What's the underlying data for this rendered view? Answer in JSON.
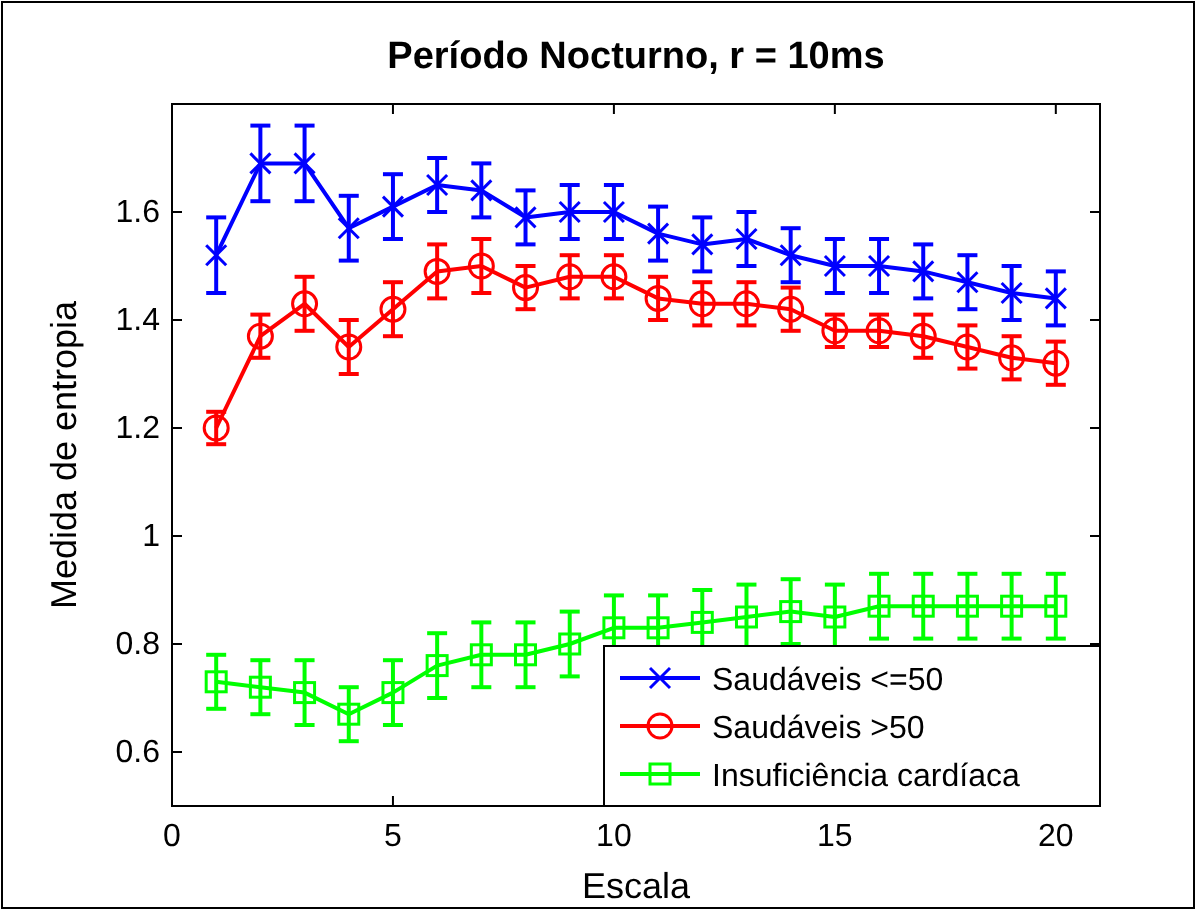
{
  "chart_data": {
    "type": "line",
    "title": "Período Nocturno,  r = 10ms",
    "xlabel": "Escala",
    "ylabel": "Medida de entropia",
    "x": [
      1,
      2,
      3,
      4,
      5,
      6,
      7,
      8,
      9,
      10,
      11,
      12,
      13,
      14,
      15,
      16,
      17,
      18,
      19,
      20
    ],
    "xlim": [
      0,
      21
    ],
    "xticks": [
      0,
      5,
      10,
      15,
      20
    ],
    "ylim": [
      0.5,
      1.8
    ],
    "yticks": [
      0.6,
      0.8,
      1,
      1.2,
      1.4,
      1.6
    ],
    "legend": "bottom right",
    "grid": false,
    "line_style": "solid",
    "series": [
      {
        "name": "Saudáveis <=50",
        "color": "#0000ff",
        "marker": "cross",
        "values": [
          1.52,
          1.69,
          1.69,
          1.57,
          1.61,
          1.65,
          1.64,
          1.59,
          1.6,
          1.6,
          1.56,
          1.54,
          1.55,
          1.52,
          1.5,
          1.5,
          1.49,
          1.47,
          1.45,
          1.44
        ],
        "errors": [
          0.07,
          0.07,
          0.07,
          0.06,
          0.06,
          0.05,
          0.05,
          0.05,
          0.05,
          0.05,
          0.05,
          0.05,
          0.05,
          0.05,
          0.05,
          0.05,
          0.05,
          0.05,
          0.05,
          0.05
        ]
      },
      {
        "name": "Saudáveis >50",
        "color": "#ff0000",
        "marker": "circle",
        "values": [
          1.2,
          1.37,
          1.43,
          1.35,
          1.42,
          1.49,
          1.5,
          1.46,
          1.48,
          1.48,
          1.44,
          1.43,
          1.43,
          1.42,
          1.38,
          1.38,
          1.37,
          1.35,
          1.33,
          1.32
        ],
        "errors": [
          0.03,
          0.04,
          0.05,
          0.05,
          0.05,
          0.05,
          0.05,
          0.04,
          0.04,
          0.04,
          0.04,
          0.04,
          0.04,
          0.04,
          0.03,
          0.03,
          0.04,
          0.04,
          0.04,
          0.04
        ]
      },
      {
        "name": "Insuficiência cardíaca",
        "color": "#00ff00",
        "marker": "square",
        "values": [
          0.73,
          0.72,
          0.71,
          0.67,
          0.71,
          0.76,
          0.78,
          0.78,
          0.8,
          0.83,
          0.83,
          0.84,
          0.85,
          0.86,
          0.85,
          0.87,
          0.87,
          0.87,
          0.87,
          0.87
        ],
        "errors": [
          0.05,
          0.05,
          0.06,
          0.05,
          0.06,
          0.06,
          0.06,
          0.06,
          0.06,
          0.06,
          0.06,
          0.06,
          0.06,
          0.06,
          0.06,
          0.06,
          0.06,
          0.06,
          0.06,
          0.06
        ]
      }
    ]
  }
}
